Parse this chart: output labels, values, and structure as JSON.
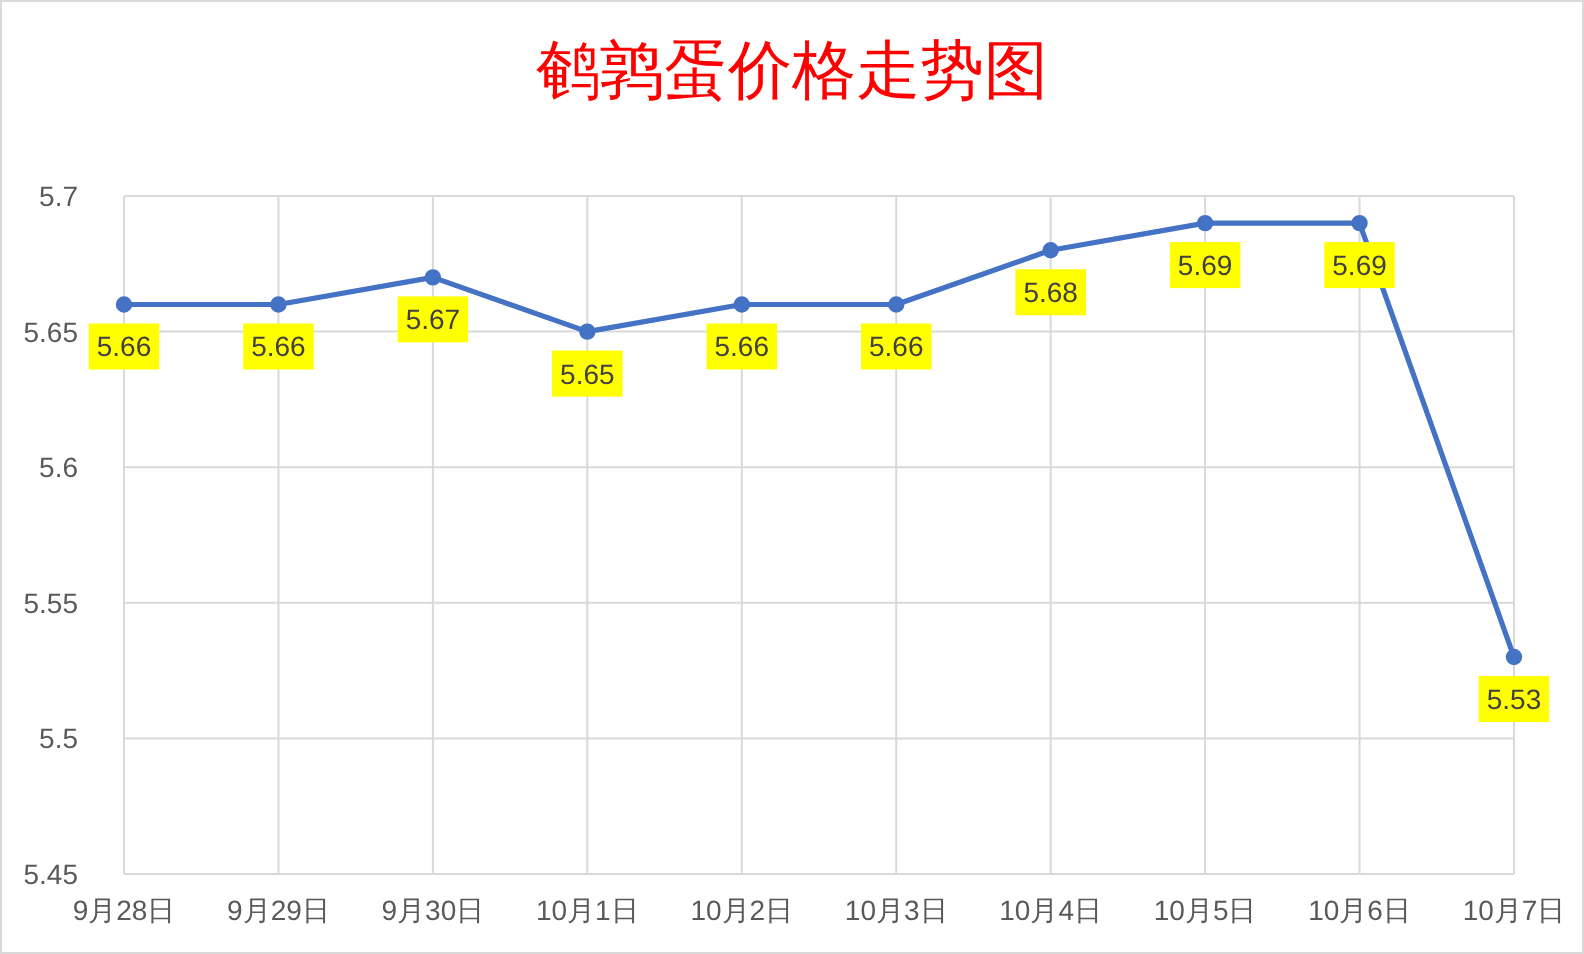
{
  "chart_data": {
    "type": "line",
    "title": "鹌鹑蛋价格走势图",
    "categories": [
      "9月28日",
      "9月29日",
      "9月30日",
      "10月1日",
      "10月2日",
      "10月3日",
      "10月4日",
      "10月5日",
      "10月6日",
      "10月7日"
    ],
    "values": [
      5.66,
      5.66,
      5.67,
      5.65,
      5.66,
      5.66,
      5.68,
      5.69,
      5.69,
      5.53
    ],
    "color": "#4472c4",
    "ylim": [
      5.45,
      5.7
    ],
    "yticks": [
      5.45,
      5.5,
      5.55,
      5.6,
      5.65,
      5.7
    ],
    "grid": true,
    "marker": "circle",
    "line_style": "solid",
    "data_labels": true
  }
}
